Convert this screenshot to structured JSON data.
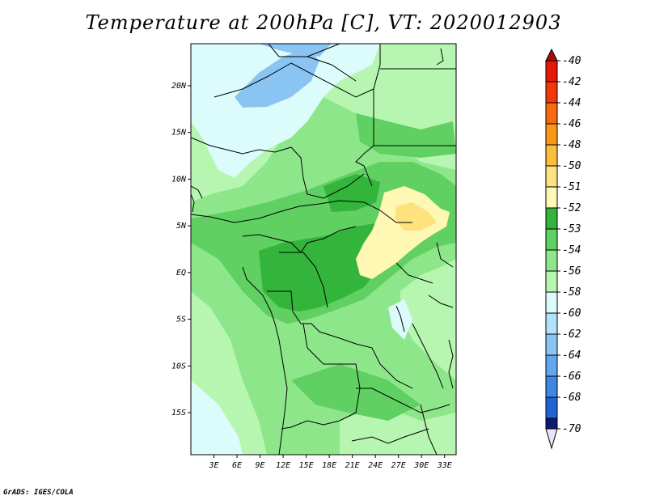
{
  "title": "Temperature at 200hPa [C], VT: 2020012903",
  "credit": "GrADS: IGES/COLA",
  "map": {
    "lat_labels": [
      {
        "value": 20,
        "text": "20N"
      },
      {
        "value": 15,
        "text": "15N"
      },
      {
        "value": 10,
        "text": "10N"
      },
      {
        "value": 5,
        "text": "5N"
      },
      {
        "value": 0,
        "text": "EQ"
      },
      {
        "value": -5,
        "text": "5S"
      },
      {
        "value": -10,
        "text": "10S"
      },
      {
        "value": -15,
        "text": "15S"
      }
    ],
    "lon_labels": [
      {
        "value": 3,
        "text": "3E"
      },
      {
        "value": 6,
        "text": "6E"
      },
      {
        "value": 9,
        "text": "9E"
      },
      {
        "value": 12,
        "text": "12E"
      },
      {
        "value": 15,
        "text": "15E"
      },
      {
        "value": 18,
        "text": "18E"
      },
      {
        "value": 21,
        "text": "21E"
      },
      {
        "value": 24,
        "text": "24E"
      },
      {
        "value": 27,
        "text": "27E"
      },
      {
        "value": 30,
        "text": "30E"
      },
      {
        "value": 33,
        "text": "33E"
      }
    ],
    "lon_range": [
      0,
      34.5
    ],
    "lat_range": [
      -19.5,
      24.5
    ]
  },
  "colorbar": {
    "levels": [
      {
        "label": "-40",
        "color": "#e8170c"
      },
      {
        "label": "-42",
        "color": "#f2380b"
      },
      {
        "label": "-44",
        "color": "#f66b0f"
      },
      {
        "label": "-46",
        "color": "#fa9716"
      },
      {
        "label": "-48",
        "color": "#fbbe3c"
      },
      {
        "label": "-50",
        "color": "#fde27e"
      },
      {
        "label": "-51",
        "color": "#fff8b4"
      },
      {
        "label": "-52",
        "color": "#33b43a"
      },
      {
        "label": "-53",
        "color": "#5fd061"
      },
      {
        "label": "-54",
        "color": "#8ee68b"
      },
      {
        "label": "-56",
        "color": "#b7f6b0"
      },
      {
        "label": "-58",
        "color": "#dcfcfc"
      },
      {
        "label": "-60",
        "color": "#b2e2fa"
      },
      {
        "label": "-62",
        "color": "#8ac4f2"
      },
      {
        "label": "-64",
        "color": "#62a6ec"
      },
      {
        "label": "-66",
        "color": "#3e88e4"
      },
      {
        "label": "-68",
        "color": "#2263d4"
      },
      {
        "label": "-70",
        "color": "#1240b4"
      }
    ],
    "top_color": "#aa0a0a",
    "bottom_colors": [
      "#0a1a76",
      "#e6e6fa"
    ]
  }
}
